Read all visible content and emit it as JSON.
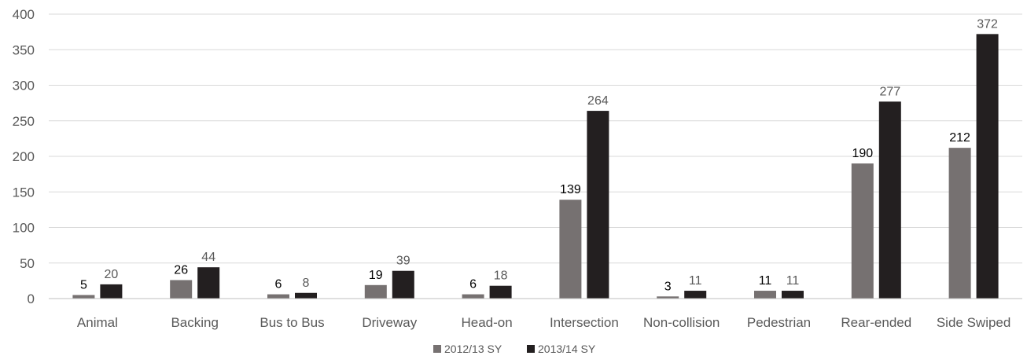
{
  "chart_data": {
    "type": "bar",
    "title": "",
    "xlabel": "",
    "ylabel": "",
    "ylim": [
      0,
      400
    ],
    "yticks": [
      0,
      50,
      100,
      150,
      200,
      250,
      300,
      350,
      400
    ],
    "grid": true,
    "legend_position": "bottom",
    "categories": [
      "Animal",
      "Backing",
      "Bus to Bus",
      "Driveway",
      "Head-on",
      "Intersection",
      "Non-collision",
      "Pedestrian",
      "Rear-ended",
      "Side Swiped"
    ],
    "series": [
      {
        "name": "2012/13 SY",
        "color": "#767171",
        "label_color": "#000000",
        "values": [
          5,
          26,
          6,
          19,
          6,
          139,
          3,
          11,
          190,
          212
        ]
      },
      {
        "name": "2013/14 SY",
        "color": "#231f20",
        "label_color": "#595959",
        "values": [
          20,
          44,
          8,
          39,
          18,
          264,
          11,
          11,
          277,
          372
        ]
      }
    ]
  }
}
